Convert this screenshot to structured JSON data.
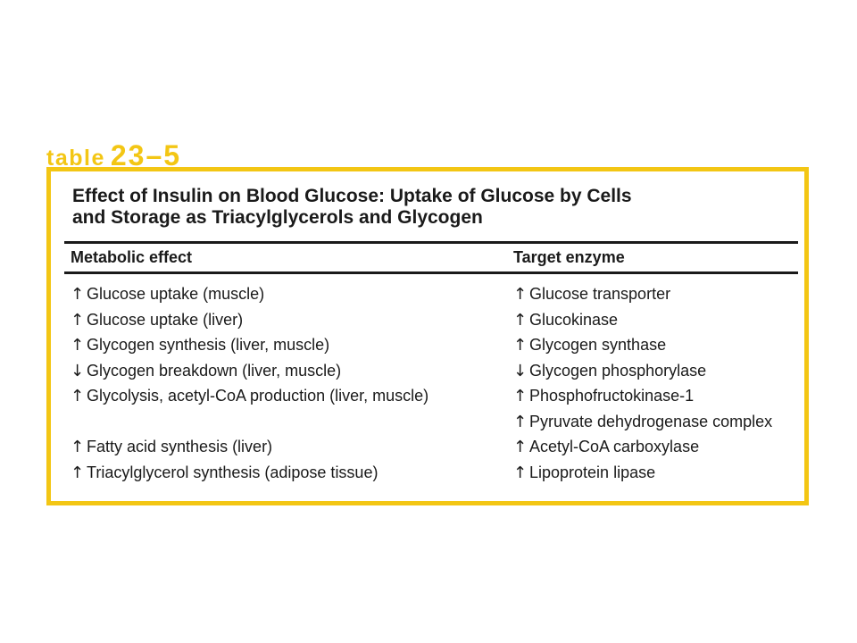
{
  "label": {
    "word": "table",
    "number": "23–5"
  },
  "title": {
    "line1": "Effect of Insulin on Blood Glucose: Uptake of Glucose by Cells",
    "line2": "and Storage as Triacylglycerols and Glycogen"
  },
  "columns": {
    "effect": "Metabolic effect",
    "enzyme": "Target enzyme"
  },
  "rows": [
    {
      "effect_arrow": "↑",
      "effect": "Glucose uptake (muscle)",
      "enzyme_arrow": "↑",
      "enzyme": "Glucose transporter"
    },
    {
      "effect_arrow": "↑",
      "effect": "Glucose uptake (liver)",
      "enzyme_arrow": "↑",
      "enzyme": "Glucokinase"
    },
    {
      "effect_arrow": "↑",
      "effect": "Glycogen synthesis (liver, muscle)",
      "enzyme_arrow": "↑",
      "enzyme": "Glycogen synthase"
    },
    {
      "effect_arrow": "↓",
      "effect": "Glycogen breakdown (liver, muscle)",
      "enzyme_arrow": "↓",
      "enzyme": "Glycogen phosphorylase"
    },
    {
      "effect_arrow": "↑",
      "effect": "Glycolysis, acetyl-CoA production (liver, muscle)",
      "enzyme_arrow": "↑",
      "enzyme": "Phosphofructokinase-1"
    },
    {
      "effect_arrow": "",
      "effect": "",
      "enzyme_arrow": "↑",
      "enzyme": "Pyruvate dehydrogenase complex"
    },
    {
      "effect_arrow": "↑",
      "effect": "Fatty acid synthesis (liver)",
      "enzyme_arrow": "↑",
      "enzyme": "Acetyl-CoA carboxylase"
    },
    {
      "effect_arrow": "↑",
      "effect": "Triacylglycerol synthesis (adipose tissue)",
      "enzyme_arrow": "↑",
      "enzyme": "Lipoprotein lipase"
    }
  ],
  "colors": {
    "accent": "#f3c614",
    "text": "#1a1a1a"
  }
}
